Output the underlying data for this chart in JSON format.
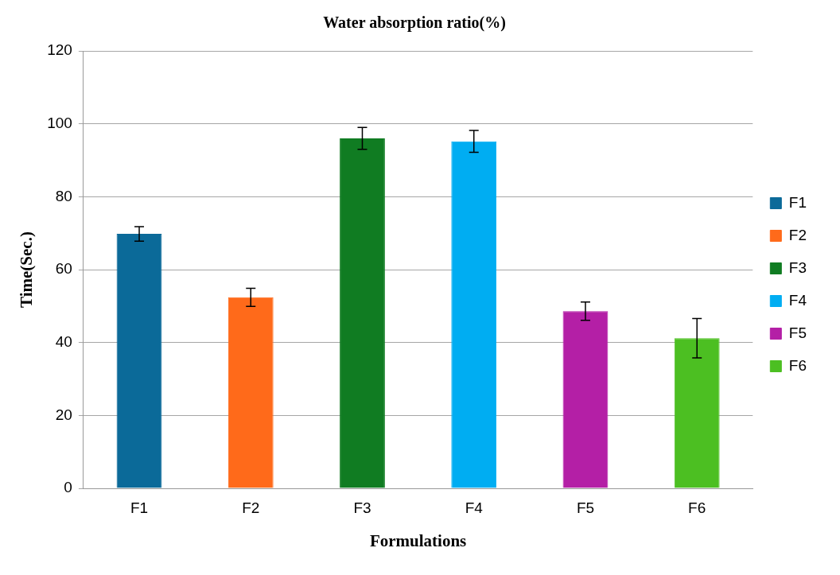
{
  "chart_data": {
    "type": "bar",
    "title": "Water absorption ratio(%)",
    "xlabel": "Formulations",
    "ylabel": "Time(Sec.)",
    "categories": [
      "F1",
      "F2",
      "F3",
      "F4",
      "F5",
      "F6"
    ],
    "series": [
      {
        "name": "F1",
        "color": "#0b6a99",
        "values": [
          69.8,
          null,
          null,
          null,
          null,
          null
        ],
        "errors": [
          2,
          null,
          null,
          null,
          null,
          null
        ]
      },
      {
        "name": "F2",
        "color": "#ff6a1a",
        "values": [
          null,
          52.4,
          null,
          null,
          null,
          null
        ],
        "errors": [
          null,
          2.5,
          null,
          null,
          null,
          null
        ]
      },
      {
        "name": "F3",
        "color": "#107c22",
        "values": [
          null,
          null,
          96.0,
          null,
          null,
          null
        ],
        "errors": [
          null,
          null,
          3,
          null,
          null,
          null
        ]
      },
      {
        "name": "F4",
        "color": "#00adf2",
        "values": [
          null,
          null,
          null,
          95.2,
          null,
          null
        ],
        "errors": [
          null,
          null,
          null,
          3,
          null,
          null
        ]
      },
      {
        "name": "F5",
        "color": "#b41fa6",
        "values": [
          null,
          null,
          null,
          null,
          48.6,
          null
        ],
        "errors": [
          null,
          null,
          null,
          null,
          2.5,
          null
        ]
      },
      {
        "name": "F6",
        "color": "#4cbf22",
        "values": [
          null,
          null,
          null,
          null,
          null,
          41.2
        ],
        "errors": [
          null,
          null,
          null,
          null,
          null,
          5.4
        ]
      }
    ],
    "ylim": [
      0,
      120
    ],
    "yticks": [
      0,
      20,
      40,
      60,
      80,
      100,
      120
    ],
    "grid": "y",
    "legend": "right"
  }
}
